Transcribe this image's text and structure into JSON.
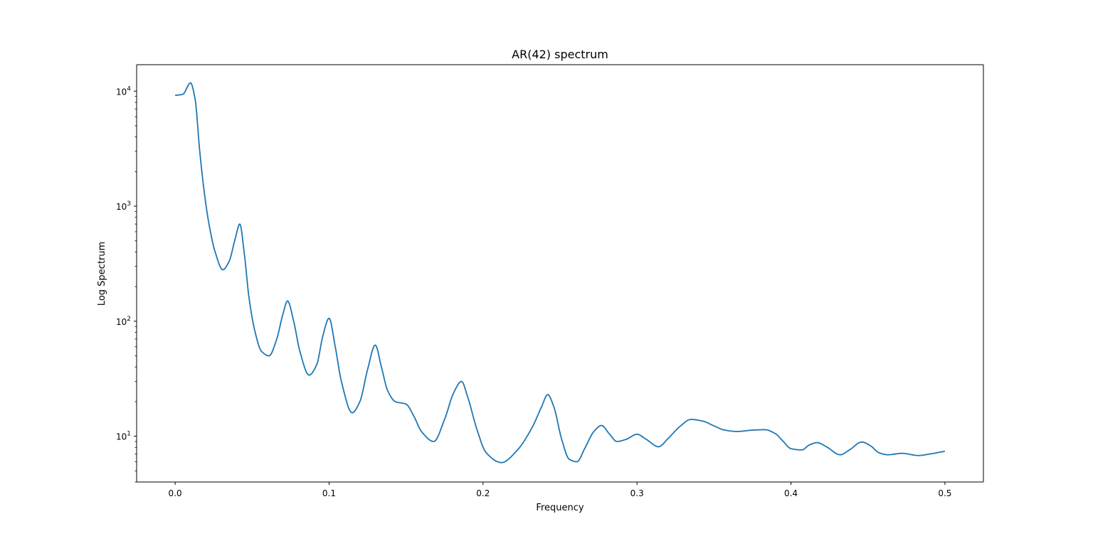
{
  "chart_data": {
    "type": "line",
    "title": "AR(42) spectrum",
    "xlabel": "Frequency",
    "ylabel": "Log Spectrum",
    "yscale": "log",
    "xlim": [
      -0.025,
      0.525
    ],
    "ylim": [
      4.0,
      17000
    ],
    "grid": false,
    "legend": "none",
    "line_color": "#1f77b4",
    "xticks": [
      {
        "value": 0.0,
        "label": "0.0"
      },
      {
        "value": 0.1,
        "label": "0.1"
      },
      {
        "value": 0.2,
        "label": "0.2"
      },
      {
        "value": 0.3,
        "label": "0.3"
      },
      {
        "value": 0.4,
        "label": "0.4"
      },
      {
        "value": 0.5,
        "label": "0.5"
      }
    ],
    "yticks": [
      {
        "value": 10,
        "base": "10",
        "exp": "1"
      },
      {
        "value": 100,
        "base": "10",
        "exp": "2"
      },
      {
        "value": 1000,
        "base": "10",
        "exp": "3"
      },
      {
        "value": 10000,
        "base": "10",
        "exp": "4"
      }
    ],
    "x": [
      0.0,
      0.005,
      0.01,
      0.013,
      0.016,
      0.019,
      0.022,
      0.026,
      0.031,
      0.035,
      0.039,
      0.042,
      0.045,
      0.048,
      0.052,
      0.056,
      0.061,
      0.066,
      0.07,
      0.073,
      0.077,
      0.081,
      0.087,
      0.092,
      0.096,
      0.1,
      0.104,
      0.108,
      0.115,
      0.12,
      0.125,
      0.13,
      0.134,
      0.138,
      0.143,
      0.15,
      0.155,
      0.16,
      0.168,
      0.175,
      0.181,
      0.186,
      0.19,
      0.196,
      0.202,
      0.212,
      0.222,
      0.232,
      0.238,
      0.242,
      0.246,
      0.251,
      0.256,
      0.261,
      0.266,
      0.272,
      0.277,
      0.282,
      0.287,
      0.293,
      0.3,
      0.306,
      0.314,
      0.32,
      0.328,
      0.335,
      0.343,
      0.35,
      0.357,
      0.365,
      0.375,
      0.383,
      0.39,
      0.395,
      0.4,
      0.407,
      0.412,
      0.417,
      0.423,
      0.432,
      0.438,
      0.446,
      0.452,
      0.457,
      0.463,
      0.472,
      0.483,
      0.49,
      0.5
    ],
    "y": [
      9200,
      9400,
      11800,
      8500,
      3000,
      1300,
      700,
      400,
      280,
      330,
      520,
      700,
      380,
      160,
      80,
      55,
      50,
      70,
      115,
      150,
      100,
      55,
      34,
      42,
      75,
      106,
      60,
      30,
      16,
      20,
      38,
      62,
      40,
      25,
      20,
      19,
      15,
      11,
      9,
      14,
      24,
      30,
      22,
      11.5,
      7.2,
      5.9,
      7.5,
      12,
      18,
      23,
      18,
      9.5,
      6.3,
      6.0,
      7.8,
      11,
      12.4,
      10.5,
      9.0,
      9.4,
      10.4,
      9.4,
      8.1,
      9.5,
      12.2,
      14,
      13.5,
      12.3,
      11.3,
      11.0,
      11.3,
      11.4,
      10.5,
      9.0,
      7.8,
      7.6,
      8.4,
      8.8,
      8.1,
      6.9,
      7.6,
      8.9,
      8.2,
      7.2,
      6.9,
      7.1,
      6.8,
      7.0,
      7.4
    ]
  }
}
